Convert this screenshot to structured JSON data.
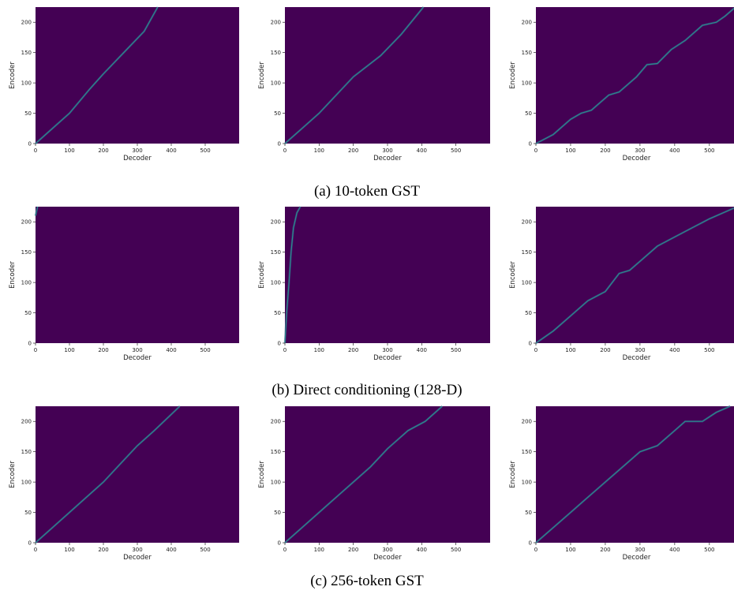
{
  "chart_data": [
    {
      "type": "heatmap",
      "row": 0,
      "col": 0,
      "xlabel": "Decoder",
      "ylabel": "Encoder",
      "xlim": [
        0,
        600
      ],
      "ylim": [
        0,
        225
      ],
      "xticks": [
        0,
        100,
        200,
        300,
        400,
        500
      ],
      "yticks": [
        0,
        50,
        100,
        150,
        200
      ],
      "alignment": [
        [
          0,
          0
        ],
        [
          60,
          30
        ],
        [
          100,
          50
        ],
        [
          160,
          90
        ],
        [
          200,
          115
        ],
        [
          260,
          150
        ],
        [
          320,
          185
        ],
        [
          360,
          225
        ]
      ]
    },
    {
      "type": "heatmap",
      "row": 0,
      "col": 1,
      "xlabel": "Decoder",
      "ylabel": "Encoder",
      "xlim": [
        0,
        600
      ],
      "ylim": [
        0,
        225
      ],
      "xticks": [
        0,
        100,
        200,
        300,
        400,
        500
      ],
      "yticks": [
        0,
        50,
        100,
        150,
        200
      ],
      "alignment": [
        [
          0,
          0
        ],
        [
          50,
          25
        ],
        [
          100,
          50
        ],
        [
          150,
          80
        ],
        [
          200,
          110
        ],
        [
          280,
          145
        ],
        [
          340,
          180
        ],
        [
          405,
          225
        ]
      ]
    },
    {
      "type": "heatmap",
      "row": 0,
      "col": 2,
      "xlabel": "Decoder",
      "ylabel": "Encoder",
      "xlim": [
        0,
        580
      ],
      "ylim": [
        0,
        225
      ],
      "xticks": [
        0,
        100,
        200,
        300,
        400,
        500
      ],
      "yticks": [
        0,
        50,
        100,
        150,
        200
      ],
      "alignment": [
        [
          0,
          0
        ],
        [
          50,
          15
        ],
        [
          100,
          40
        ],
        [
          130,
          50
        ],
        [
          160,
          55
        ],
        [
          210,
          80
        ],
        [
          240,
          85
        ],
        [
          290,
          110
        ],
        [
          320,
          130
        ],
        [
          350,
          132
        ],
        [
          390,
          155
        ],
        [
          430,
          170
        ],
        [
          480,
          195
        ],
        [
          520,
          200
        ],
        [
          545,
          210
        ],
        [
          575,
          225
        ]
      ]
    },
    {
      "type": "heatmap",
      "row": 1,
      "col": 0,
      "xlabel": "Decoder",
      "ylabel": "Encoder",
      "xlim": [
        0,
        600
      ],
      "ylim": [
        0,
        225
      ],
      "xticks": [
        0,
        100,
        200,
        300,
        400,
        500
      ],
      "yticks": [
        0,
        50,
        100,
        150,
        200
      ],
      "alignment": [
        [
          0,
          210
        ],
        [
          6,
          225
        ]
      ]
    },
    {
      "type": "heatmap",
      "row": 1,
      "col": 1,
      "xlabel": "Decoder",
      "ylabel": "Encoder",
      "xlim": [
        0,
        600
      ],
      "ylim": [
        0,
        225
      ],
      "xticks": [
        0,
        100,
        200,
        300,
        400,
        500
      ],
      "yticks": [
        0,
        50,
        100,
        150,
        200
      ],
      "alignment": [
        [
          0,
          0
        ],
        [
          5,
          50
        ],
        [
          12,
          100
        ],
        [
          18,
          150
        ],
        [
          25,
          190
        ],
        [
          35,
          215
        ],
        [
          45,
          225
        ]
      ]
    },
    {
      "type": "heatmap",
      "row": 1,
      "col": 2,
      "xlabel": "Decoder",
      "ylabel": "Encoder",
      "xlim": [
        0,
        580
      ],
      "ylim": [
        0,
        225
      ],
      "xticks": [
        0,
        100,
        200,
        300,
        400,
        500
      ],
      "yticks": [
        0,
        50,
        100,
        150,
        200
      ],
      "alignment": [
        [
          0,
          0
        ],
        [
          50,
          20
        ],
        [
          100,
          45
        ],
        [
          150,
          70
        ],
        [
          200,
          85
        ],
        [
          240,
          115
        ],
        [
          270,
          120
        ],
        [
          310,
          140
        ],
        [
          350,
          160
        ],
        [
          400,
          175
        ],
        [
          450,
          190
        ],
        [
          500,
          205
        ],
        [
          580,
          225
        ]
      ]
    },
    {
      "type": "heatmap",
      "row": 2,
      "col": 0,
      "xlabel": "Decoder",
      "ylabel": "Encoder",
      "xlim": [
        0,
        600
      ],
      "ylim": [
        0,
        225
      ],
      "xticks": [
        0,
        100,
        200,
        300,
        400,
        500
      ],
      "yticks": [
        0,
        50,
        100,
        150,
        200
      ],
      "alignment": [
        [
          0,
          0
        ],
        [
          50,
          25
        ],
        [
          100,
          50
        ],
        [
          150,
          75
        ],
        [
          200,
          100
        ],
        [
          250,
          130
        ],
        [
          300,
          160
        ],
        [
          350,
          185
        ],
        [
          425,
          225
        ]
      ]
    },
    {
      "type": "heatmap",
      "row": 2,
      "col": 1,
      "xlabel": "Decoder",
      "ylabel": "Encoder",
      "xlim": [
        0,
        600
      ],
      "ylim": [
        0,
        225
      ],
      "xticks": [
        0,
        100,
        200,
        300,
        400,
        500
      ],
      "yticks": [
        0,
        50,
        100,
        150,
        200
      ],
      "alignment": [
        [
          0,
          0
        ],
        [
          50,
          25
        ],
        [
          100,
          50
        ],
        [
          150,
          75
        ],
        [
          200,
          100
        ],
        [
          250,
          125
        ],
        [
          300,
          155
        ],
        [
          360,
          185
        ],
        [
          410,
          200
        ],
        [
          460,
          225
        ]
      ]
    },
    {
      "type": "heatmap",
      "row": 2,
      "col": 2,
      "xlabel": "Decoder",
      "ylabel": "Encoder",
      "xlim": [
        0,
        580
      ],
      "ylim": [
        0,
        225
      ],
      "xticks": [
        0,
        100,
        200,
        300,
        400,
        500
      ],
      "yticks": [
        0,
        50,
        100,
        150,
        200
      ],
      "alignment": [
        [
          0,
          0
        ],
        [
          50,
          25
        ],
        [
          100,
          50
        ],
        [
          150,
          75
        ],
        [
          200,
          100
        ],
        [
          250,
          125
        ],
        [
          300,
          150
        ],
        [
          350,
          160
        ],
        [
          400,
          185
        ],
        [
          430,
          200
        ],
        [
          480,
          200
        ],
        [
          520,
          215
        ],
        [
          560,
          225
        ]
      ]
    }
  ],
  "captions": [
    "(a)  10-token GST",
    "(b)  Direct conditioning (128-D)",
    "(c)  256-token GST"
  ],
  "colors": {
    "background": "#440154",
    "alignment_line": "#2a8c8c",
    "alignment_glow": "#3b528b"
  }
}
